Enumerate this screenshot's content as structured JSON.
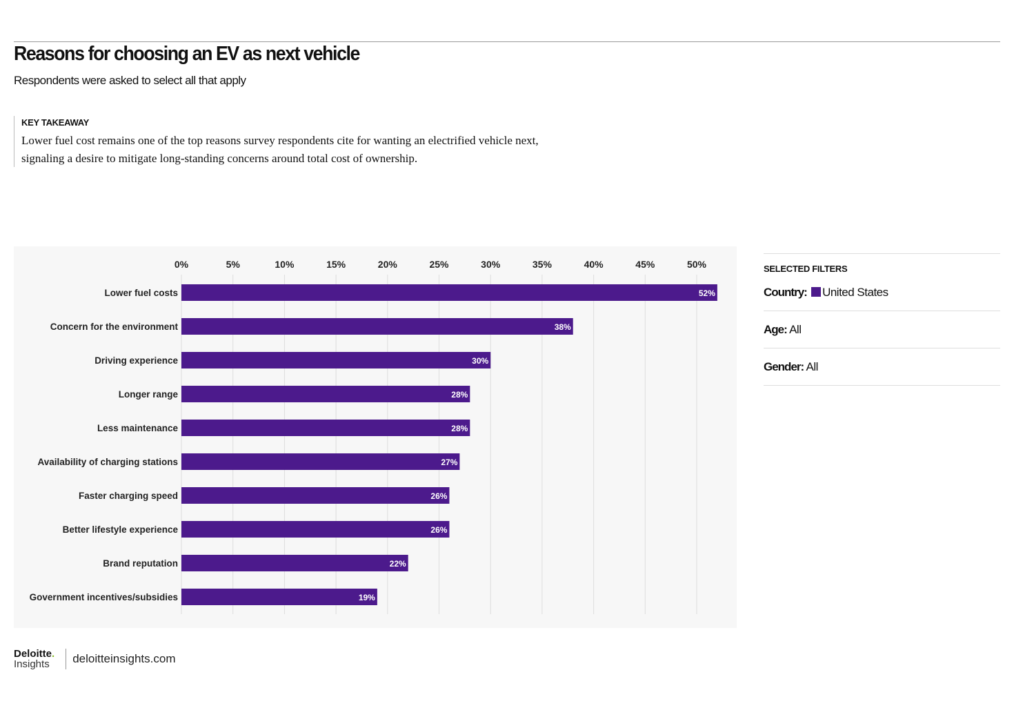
{
  "header": {
    "title": "Reasons for choosing an EV as next vehicle",
    "subtitle": "Respondents were asked to select all that apply"
  },
  "takeaway": {
    "heading": "KEY TAKEAWAY",
    "body": "Lower fuel cost remains one of the top reasons survey respondents cite for wanting an electrified vehicle next, signaling a desire to mitigate long-standing concerns around total cost of ownership."
  },
  "filters": {
    "heading": "SELECTED FILTERS",
    "country_label": "Country:",
    "country_value": "United States",
    "age_label": "Age:",
    "age_value": "All",
    "gender_label": "Gender:",
    "gender_value": "All"
  },
  "footer": {
    "logo_top": "Deloitte",
    "logo_dot": ".",
    "logo_bottom": "Insights",
    "site": "deloitteinsights.com"
  },
  "colors": {
    "bar": "#4c1a8c",
    "background": "#f7f7f7"
  },
  "chart_data": {
    "type": "bar",
    "orientation": "horizontal",
    "categories": [
      "Lower fuel costs",
      "Concern for the environment",
      "Driving experience",
      "Longer range",
      "Less maintenance",
      "Availability of charging stations",
      "Faster charging speed",
      "Better lifestyle experience",
      "Brand reputation",
      "Government incentives/subsidies"
    ],
    "values": [
      52,
      38,
      30,
      28,
      28,
      27,
      26,
      26,
      22,
      19
    ],
    "value_labels": [
      "52%",
      "38%",
      "30%",
      "28%",
      "28%",
      "27%",
      "26%",
      "26%",
      "22%",
      "19%"
    ],
    "xticks": [
      "0%",
      "5%",
      "10%",
      "15%",
      "20%",
      "25%",
      "30%",
      "35%",
      "40%",
      "45%",
      "50%"
    ],
    "xtick_values": [
      0,
      5,
      10,
      15,
      20,
      25,
      30,
      35,
      40,
      45,
      50
    ],
    "xlim": [
      0,
      52
    ],
    "grid": true,
    "axis_position": "top"
  }
}
